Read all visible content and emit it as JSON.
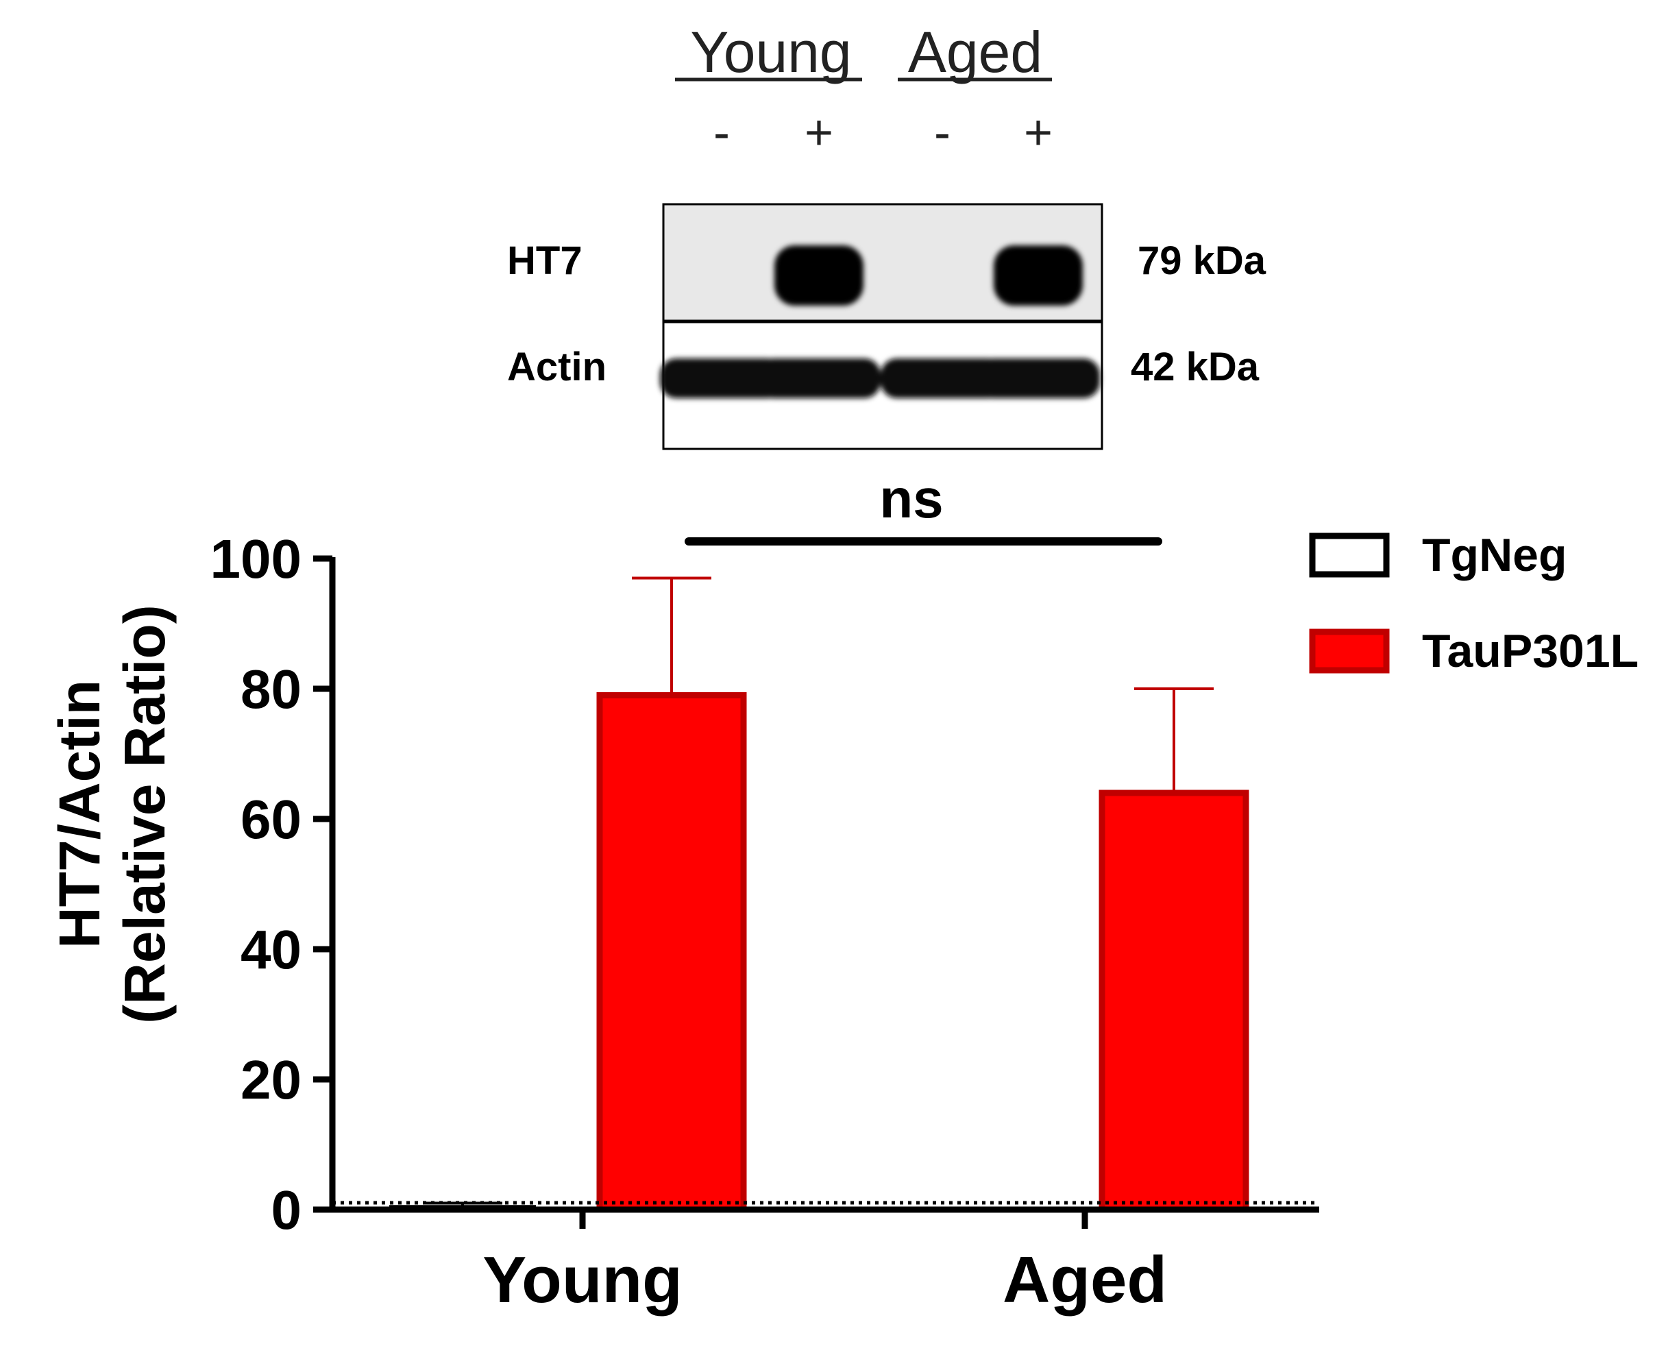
{
  "blot": {
    "group_labels": [
      "Young",
      "Aged"
    ],
    "lane_signs": [
      "-",
      "+",
      "-",
      "+"
    ],
    "rows": [
      {
        "label": "HT7",
        "kda": "79 kDa",
        "bands": [
          0,
          1,
          0,
          1
        ]
      },
      {
        "label": "Actin",
        "kda": "42 kDa",
        "bands": [
          1,
          1,
          1,
          1
        ]
      }
    ]
  },
  "significance": {
    "label": "ns"
  },
  "chart_data": {
    "type": "bar",
    "categories": [
      "Young",
      "Aged"
    ],
    "series": [
      {
        "name": "TgNeg",
        "values": [
          0.5,
          0.2
        ],
        "errors": [
          0.5,
          0.0
        ],
        "fill": "#ffffff",
        "stroke": "#000000"
      },
      {
        "name": "TauP301L",
        "values": [
          79,
          64
        ],
        "errors": [
          18,
          16
        ],
        "fill": "#ff0000",
        "stroke": "#c00000"
      }
    ],
    "ylabel": [
      "HT7/Actin",
      "(Relative Ratio)"
    ],
    "xlabel": "",
    "ylim": [
      0,
      100
    ],
    "yticks": [
      0,
      20,
      40,
      60,
      80,
      100
    ],
    "legend": "top-right",
    "grid": false
  }
}
